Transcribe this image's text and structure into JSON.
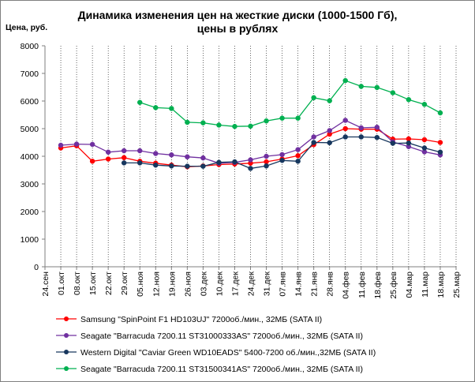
{
  "chart_data": {
    "type": "line",
    "title_line1": "Динамика изменения цен на жесткие диски (1000-1500 Гб),",
    "title_line2": "цены в рублях",
    "ylabel": "Цена, руб.",
    "ylim": [
      0,
      8000
    ],
    "ytick_values": [
      0,
      1000,
      2000,
      3000,
      4000,
      5000,
      6000,
      7000,
      8000
    ],
    "ytick_labels": [
      "0",
      "1000",
      "2000",
      "3000",
      "4000",
      "5000",
      "6000",
      "7000",
      "8000"
    ],
    "categories": [
      "24.сен",
      "01.окт",
      "08.окт",
      "15.окт",
      "22.окт",
      "29.окт",
      "05.ноя",
      "12.ноя",
      "19.ноя",
      "26.ноя",
      "03.дек",
      "10.дек",
      "17.дек",
      "24.дек",
      "31.дек",
      "07.янв",
      "14.янв",
      "21.янв",
      "28.янв",
      "04.фев",
      "11.фев",
      "18.фев",
      "25.фев",
      "04.мар",
      "11.мар",
      "18.мар",
      "25.мар"
    ],
    "grid": "vertical",
    "legend_position": "bottom",
    "series": [
      {
        "name": "Samsung \"SpinPoint F1 HD103UJ\" 7200об./мин., 32МБ (SATA II)",
        "color": "#ff0000",
        "values": [
          null,
          4300,
          4380,
          3820,
          3900,
          3950,
          3820,
          3750,
          3680,
          3620,
          3650,
          3700,
          3720,
          3750,
          3800,
          3900,
          4020,
          4420,
          4800,
          5000,
          4980,
          4980,
          4620,
          4630,
          4600,
          4500,
          null
        ]
      },
      {
        "name": "Seagate \"Barracuda 7200.11 ST31000333AS\" 7200об./мин., 32МБ (SATA II)",
        "color": "#7030a0",
        "values": [
          null,
          4400,
          4440,
          4430,
          4150,
          4200,
          4200,
          4100,
          4050,
          3980,
          3940,
          3750,
          3780,
          3870,
          4000,
          4060,
          4240,
          4700,
          4930,
          5300,
          5030,
          5050,
          4520,
          4350,
          4160,
          4050,
          null
        ]
      },
      {
        "name": "Western Digital \"Caviar Green WD10EADS\" 5400-7200 об./мин.,32МБ (SATA II)",
        "color": "#17375e",
        "values": [
          null,
          null,
          null,
          null,
          null,
          3760,
          3760,
          3680,
          3650,
          3640,
          3640,
          3780,
          3800,
          3560,
          3650,
          3850,
          3820,
          4500,
          4490,
          4700,
          4700,
          4680,
          4470,
          4480,
          4300,
          4150,
          null
        ]
      },
      {
        "name": "Seagate \"Barracuda 7200.11 ST31500341AS\" 7200об./мин., 32МБ (SATA II)",
        "color": "#00b050",
        "values": [
          null,
          null,
          null,
          null,
          null,
          null,
          5950,
          5760,
          5730,
          5230,
          5210,
          5130,
          5080,
          5090,
          5280,
          5380,
          5380,
          6120,
          6010,
          6740,
          6530,
          6490,
          6300,
          6050,
          5880,
          5570,
          null
        ]
      }
    ]
  }
}
